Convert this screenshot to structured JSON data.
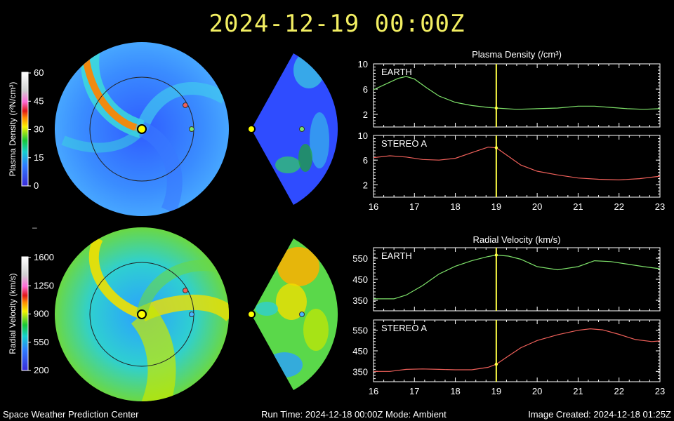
{
  "header": {
    "title": "2024-12-19  00:00Z"
  },
  "colors": {
    "earth_line": "#7ee26a",
    "stereo_line": "#f0605a",
    "cursor": "#ffff44",
    "frame": "#ffffff"
  },
  "colorbars": {
    "density": {
      "label": "Plasma Density (r²N/cm³)",
      "ticks": [
        "60",
        "45",
        "30",
        "15",
        "0"
      ]
    },
    "velocity": {
      "label": "Radial Velocity (km/s)",
      "ticks": [
        "1600",
        "1250",
        "900",
        "550",
        "200"
      ]
    }
  },
  "maps": {
    "sun_icon": "sun-dot",
    "earth_marker_color": "#7ee26a",
    "stereo_marker_color": "#f0605a",
    "velocity_earth_marker_color": "#48b4ff"
  },
  "chart_data": [
    {
      "type": "line",
      "title": "Plasma Density (/cm³)",
      "panel": "EARTH",
      "xlim": [
        16,
        23
      ],
      "ylim": [
        0,
        10
      ],
      "xticks": [
        "16",
        "17",
        "18",
        "19",
        "20",
        "21",
        "22",
        "23"
      ],
      "yticks": [
        "2",
        "6",
        "10"
      ],
      "cursor_x": 19,
      "series": [
        {
          "x": [
            16,
            16.3,
            16.6,
            16.8,
            17.0,
            17.3,
            17.6,
            18.0,
            18.4,
            18.8,
            19.0,
            19.5,
            20.0,
            20.5,
            21.0,
            21.4,
            21.8,
            22.2,
            22.6,
            23
          ],
          "y": [
            5.9,
            6.8,
            7.7,
            8.0,
            7.6,
            6.2,
            4.9,
            3.9,
            3.4,
            3.1,
            3.0,
            2.8,
            2.9,
            3.0,
            3.3,
            3.3,
            3.1,
            2.9,
            2.8,
            2.9
          ]
        }
      ]
    },
    {
      "type": "line",
      "panel": "STEREO A",
      "xlim": [
        16,
        23
      ],
      "ylim": [
        0,
        10
      ],
      "xticks": [
        "16",
        "17",
        "18",
        "19",
        "20",
        "21",
        "22",
        "23"
      ],
      "yticks": [
        "2",
        "6",
        "10"
      ],
      "cursor_x": 19,
      "series": [
        {
          "x": [
            16,
            16.4,
            16.8,
            17.2,
            17.6,
            18.0,
            18.4,
            18.8,
            19.0,
            19.3,
            19.6,
            20.0,
            20.5,
            21.0,
            21.5,
            22.0,
            22.5,
            23
          ],
          "y": [
            6.4,
            6.7,
            6.5,
            6.1,
            6.0,
            6.3,
            7.2,
            8.1,
            8.0,
            6.6,
            5.2,
            4.2,
            3.6,
            3.1,
            2.9,
            2.8,
            3.0,
            3.4
          ]
        }
      ]
    },
    {
      "type": "line",
      "title": "Radial Velocity (km/s)",
      "panel": "EARTH",
      "xlim": [
        16,
        23
      ],
      "ylim": [
        300,
        600
      ],
      "xticks": [
        "16",
        "17",
        "18",
        "19",
        "20",
        "21",
        "22",
        "23"
      ],
      "yticks": [
        "350",
        "450",
        "550"
      ],
      "cursor_x": 19,
      "series": [
        {
          "x": [
            16,
            16.5,
            16.8,
            17.2,
            17.6,
            18.0,
            18.4,
            18.8,
            19.0,
            19.3,
            19.6,
            20.0,
            20.5,
            21.0,
            21.4,
            21.8,
            22.2,
            22.6,
            23
          ],
          "y": [
            357,
            357,
            375,
            420,
            475,
            512,
            538,
            558,
            565,
            560,
            545,
            510,
            495,
            510,
            538,
            534,
            522,
            510,
            500
          ]
        }
      ]
    },
    {
      "type": "line",
      "panel": "STEREO A",
      "xlim": [
        16,
        23
      ],
      "ylim": [
        300,
        600
      ],
      "xticks": [
        "16",
        "17",
        "18",
        "19",
        "20",
        "21",
        "22",
        "23"
      ],
      "yticks": [
        "350",
        "450",
        "550"
      ],
      "cursor_x": 19,
      "series": [
        {
          "x": [
            16,
            16.4,
            16.8,
            17.2,
            17.6,
            18.0,
            18.4,
            18.8,
            19.0,
            19.3,
            19.6,
            20.0,
            20.5,
            21.0,
            21.3,
            21.6,
            22.0,
            22.4,
            22.8,
            23
          ],
          "y": [
            350,
            350,
            360,
            362,
            360,
            358,
            358,
            370,
            385,
            425,
            465,
            500,
            528,
            550,
            557,
            552,
            530,
            505,
            495,
            498
          ]
        }
      ]
    }
  ],
  "footer": {
    "left": "Space Weather Prediction Center",
    "middle": "Run Time: 2024-12-18 00:00Z  Mode: Ambient",
    "right": "Image Created: 2024-12-18 01:25Z"
  }
}
